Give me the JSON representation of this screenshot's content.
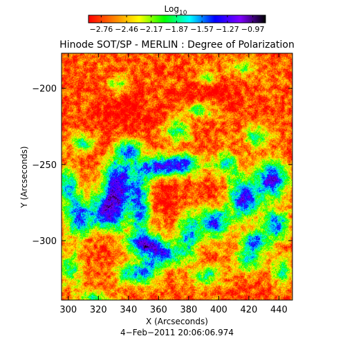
{
  "chart_data": {
    "type": "heatmap",
    "title": "Hinode SOT/SP - MERLIN : Degree of Polarization",
    "colorbar": {
      "label": "Log",
      "label_subscript": "10",
      "range": [
        -2.91,
        -0.82
      ],
      "tick_labels": [
        "−2.76",
        "−2.46",
        "−2.17",
        "−1.87",
        "−1.57",
        "−1.27",
        "−0.97"
      ],
      "tick_values": [
        -2.76,
        -2.46,
        -2.17,
        -1.87,
        -1.57,
        -1.27,
        -0.97
      ],
      "colormap": [
        "#ff0000",
        "#ff8000",
        "#ffff00",
        "#00ff00",
        "#00ffff",
        "#0000ff",
        "#8000ff",
        "#000000"
      ]
    },
    "xlabel": "X (Arcseconds)",
    "ylabel": "Y (Arcseconds)",
    "xlim": [
      295.5,
      449
    ],
    "ylim": [
      -339,
      -177
    ],
    "x_ticks": [
      300,
      320,
      340,
      360,
      380,
      400,
      420,
      440
    ],
    "x_tick_labels": [
      "300",
      "320",
      "340",
      "360",
      "380",
      "400",
      "420",
      "440"
    ],
    "y_ticks": [
      -200,
      -250,
      -300
    ],
    "y_tick_labels": [
      "−200",
      "−250",
      "−300"
    ],
    "background_log10": -2.7,
    "features": [
      {
        "x": 333,
        "y": -262,
        "sx": 7,
        "sy": 12,
        "log10": -1.25,
        "kind": "network"
      },
      {
        "x": 326,
        "y": -282,
        "sx": 8,
        "sy": 9,
        "log10": -1.35,
        "kind": "network"
      },
      {
        "x": 307,
        "y": -285,
        "sx": 6,
        "sy": 9,
        "log10": -1.45,
        "kind": "network"
      },
      {
        "x": 348,
        "y": -276,
        "sx": 5,
        "sy": 16,
        "log10": -1.55,
        "kind": "network"
      },
      {
        "x": 358,
        "y": -252,
        "sx": 9,
        "sy": 5,
        "log10": -1.5,
        "kind": "network"
      },
      {
        "x": 376,
        "y": -250,
        "sx": 9,
        "sy": 5,
        "log10": -1.5,
        "kind": "network"
      },
      {
        "x": 352,
        "y": -302,
        "sx": 9,
        "sy": 5,
        "log10": -1.3,
        "kind": "network"
      },
      {
        "x": 365,
        "y": -310,
        "sx": 8,
        "sy": 5,
        "log10": -1.55,
        "kind": "network"
      },
      {
        "x": 380,
        "y": -296,
        "sx": 5,
        "sy": 10,
        "log10": -1.6,
        "kind": "network"
      },
      {
        "x": 397,
        "y": -288,
        "sx": 7,
        "sy": 7,
        "log10": -1.35,
        "kind": "network"
      },
      {
        "x": 417,
        "y": -272,
        "sx": 8,
        "sy": 9,
        "log10": -1.2,
        "kind": "network"
      },
      {
        "x": 436,
        "y": -260,
        "sx": 7,
        "sy": 8,
        "log10": -1.3,
        "kind": "network"
      },
      {
        "x": 438,
        "y": -290,
        "sx": 6,
        "sy": 7,
        "log10": -1.5,
        "kind": "network"
      },
      {
        "x": 424,
        "y": -300,
        "sx": 6,
        "sy": 5,
        "log10": -1.65,
        "kind": "network"
      },
      {
        "x": 310,
        "y": -236,
        "sx": 6,
        "sy": 4,
        "log10": -1.8,
        "kind": "network"
      },
      {
        "x": 341,
        "y": -322,
        "sx": 6,
        "sy": 5,
        "log10": -1.8,
        "kind": "network"
      },
      {
        "x": 353,
        "y": -320,
        "sx": 6,
        "sy": 6,
        "log10": -1.85,
        "kind": "network"
      },
      {
        "x": 392,
        "y": -323,
        "sx": 7,
        "sy": 5,
        "log10": -1.9,
        "kind": "network"
      },
      {
        "x": 420,
        "y": -312,
        "sx": 7,
        "sy": 6,
        "log10": -1.8,
        "kind": "network"
      },
      {
        "x": 442,
        "y": -320,
        "sx": 5,
        "sy": 6,
        "log10": -1.9,
        "kind": "network"
      },
      {
        "x": 372,
        "y": -228,
        "sx": 6,
        "sy": 5,
        "log10": -1.85,
        "kind": "network"
      },
      {
        "x": 388,
        "y": -214,
        "sx": 8,
        "sy": 4,
        "log10": -1.95,
        "kind": "network"
      },
      {
        "x": 425,
        "y": -232,
        "sx": 6,
        "sy": 5,
        "log10": -1.85,
        "kind": "network"
      },
      {
        "x": 405,
        "y": -250,
        "sx": 6,
        "sy": 6,
        "log10": -1.85,
        "kind": "network"
      },
      {
        "x": 302,
        "y": -318,
        "sx": 5,
        "sy": 8,
        "log10": -1.9,
        "kind": "network"
      },
      {
        "x": 318,
        "y": -338,
        "sx": 8,
        "sy": 4,
        "log10": -1.95,
        "kind": "network"
      },
      {
        "x": 300,
        "y": -264,
        "sx": 5,
        "sy": 8,
        "log10": -1.65,
        "kind": "network"
      },
      {
        "x": 340,
        "y": -240,
        "sx": 6,
        "sy": 5,
        "log10": -1.75,
        "kind": "network"
      },
      {
        "x": 416,
        "y": -186,
        "sx": 6,
        "sy": 4,
        "log10": -2.05,
        "kind": "network"
      },
      {
        "x": 392,
        "y": -193,
        "sx": 5,
        "sy": 4,
        "log10": -2.1,
        "kind": "network"
      },
      {
        "x": 332,
        "y": -198,
        "sx": 5,
        "sy": 4,
        "log10": -2.1,
        "kind": "network"
      },
      {
        "x": 362,
        "y": -268,
        "sx": 10,
        "sy": 12,
        "log10": -3.0,
        "kind": "cell"
      },
      {
        "x": 322,
        "y": -240,
        "sx": 10,
        "sy": 7,
        "log10": -3.0,
        "kind": "cell"
      },
      {
        "x": 400,
        "y": -270,
        "sx": 10,
        "sy": 10,
        "log10": -3.0,
        "kind": "cell"
      },
      {
        "x": 338,
        "y": -215,
        "sx": 14,
        "sy": 10,
        "log10": -3.1,
        "kind": "cell"
      },
      {
        "x": 395,
        "y": -205,
        "sx": 14,
        "sy": 10,
        "log10": -3.1,
        "kind": "cell"
      },
      {
        "x": 320,
        "y": -300,
        "sx": 8,
        "sy": 7,
        "log10": -3.0,
        "kind": "cell"
      }
    ]
  },
  "timestamp": "4−Feb−2011 20:06:06.974"
}
